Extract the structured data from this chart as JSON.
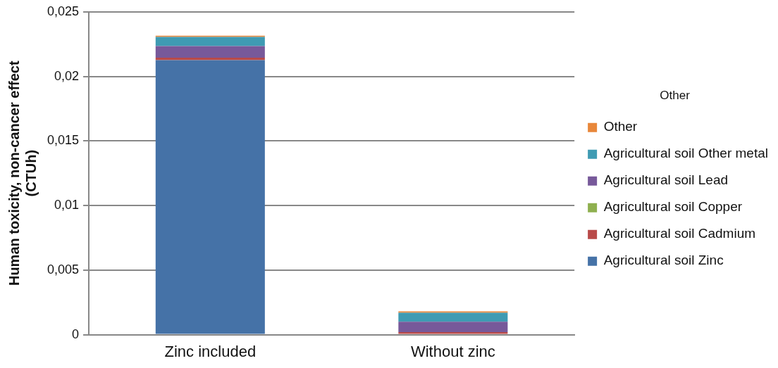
{
  "chart_data": {
    "type": "bar",
    "stacked": true,
    "ylabel": "Human toxicity, non-cancer effect (CTUh)",
    "legend_title": "Other",
    "legend": "right",
    "grid": "y",
    "categories": [
      "Zinc included",
      "Without zinc"
    ],
    "ylim": [
      0,
      0.025
    ],
    "yticks": [
      {
        "value": 0,
        "label": "0"
      },
      {
        "value": 0.005,
        "label": "0,005"
      },
      {
        "value": 0.01,
        "label": "0,01"
      },
      {
        "value": 0.015,
        "label": "0,015"
      },
      {
        "value": 0.02,
        "label": "0,02"
      },
      {
        "value": 0.025,
        "label": "0,025"
      }
    ],
    "series": [
      {
        "name": "Agricultural soil Zinc",
        "color": "#4572a7",
        "values": [
          0.02125,
          0
        ]
      },
      {
        "name": "Agricultural soil Cadmium",
        "color": "#b94a48",
        "values": [
          0.0002,
          0.0002
        ]
      },
      {
        "name": "Agricultural soil Copper",
        "color": "#8fb04f",
        "values": [
          0,
          0
        ]
      },
      {
        "name": "Agricultural soil Lead",
        "color": "#77599a",
        "values": [
          0.0009,
          0.0008
        ]
      },
      {
        "name": "Agricultural soil Other metal",
        "color": "#3f9bb3",
        "values": [
          0.0007,
          0.0007
        ]
      },
      {
        "name": "Other",
        "color": "#e8873a",
        "values": [
          0.0001,
          0.0001
        ]
      }
    ]
  }
}
